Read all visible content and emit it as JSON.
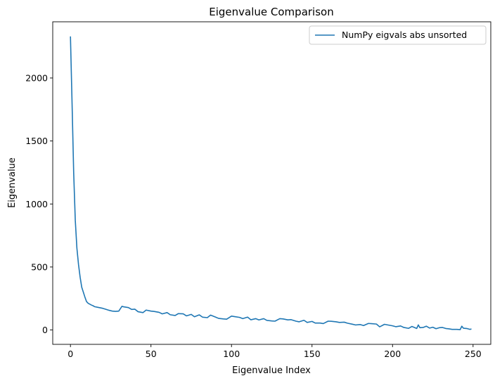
{
  "chart_data": {
    "type": "line",
    "title": "Eigenvalue Comparison",
    "xlabel": "Eigenvalue Index",
    "ylabel": "Eigenvalue",
    "xlim": [
      -11,
      261
    ],
    "ylim": [
      -114,
      2446
    ],
    "xticks": [
      0,
      50,
      100,
      150,
      200,
      250
    ],
    "yticks": [
      0,
      500,
      1000,
      1500,
      2000
    ],
    "grid": false,
    "legend_position": "top-right",
    "series": [
      {
        "name": "NumPy eigvals abs unsorted",
        "color": "#1f77b4",
        "x": [
          0,
          1,
          2,
          3,
          4,
          5,
          6,
          7,
          8,
          9,
          10,
          11,
          12,
          13,
          14,
          15,
          17,
          20,
          22,
          24,
          26,
          28,
          30,
          32,
          33,
          36,
          38,
          40,
          42,
          45,
          47,
          50,
          52,
          55,
          57,
          60,
          62,
          65,
          67,
          70,
          72,
          75,
          77,
          80,
          82,
          85,
          87,
          90,
          92,
          95,
          97,
          100,
          102,
          105,
          107,
          110,
          112,
          115,
          117,
          120,
          122,
          125,
          127,
          130,
          132,
          135,
          137,
          140,
          142,
          145,
          147,
          150,
          152,
          155,
          157,
          160,
          162,
          165,
          167,
          170,
          172,
          175,
          177,
          180,
          182,
          185,
          187,
          190,
          192,
          195,
          197,
          200,
          202,
          205,
          207,
          210,
          212,
          215,
          216,
          217,
          219,
          221,
          223,
          225,
          227,
          229,
          231,
          233,
          235,
          237,
          240,
          242,
          243,
          244,
          246,
          248,
          249
        ],
        "y": [
          2330,
          1800,
          1250,
          870,
          650,
          520,
          420,
          340,
          300,
          260,
          225,
          212,
          205,
          198,
          193,
          185,
          180,
          172,
          164,
          156,
          150,
          148,
          150,
          188,
          184,
          178,
          163,
          165,
          145,
          138,
          158,
          150,
          147,
          140,
          128,
          138,
          121,
          115,
          130,
          128,
          112,
          124,
          105,
          120,
          102,
          98,
          118,
          103,
          92,
          88,
          86,
          110,
          106,
          100,
          90,
          102,
          81,
          90,
          80,
          90,
          76,
          72,
          70,
          90,
          88,
          80,
          82,
          70,
          65,
          77,
          60,
          68,
          55,
          55,
          51,
          70,
          69,
          65,
          60,
          62,
          54,
          46,
          40,
          43,
          35,
          52,
          50,
          47,
          25,
          45,
          40,
          33,
          26,
          32,
          20,
          13,
          28,
          12,
          40,
          18,
          20,
          30,
          15,
          22,
          10,
          18,
          20,
          12,
          9,
          5,
          5,
          3,
          30,
          14,
          12,
          5,
          8
        ]
      }
    ]
  }
}
